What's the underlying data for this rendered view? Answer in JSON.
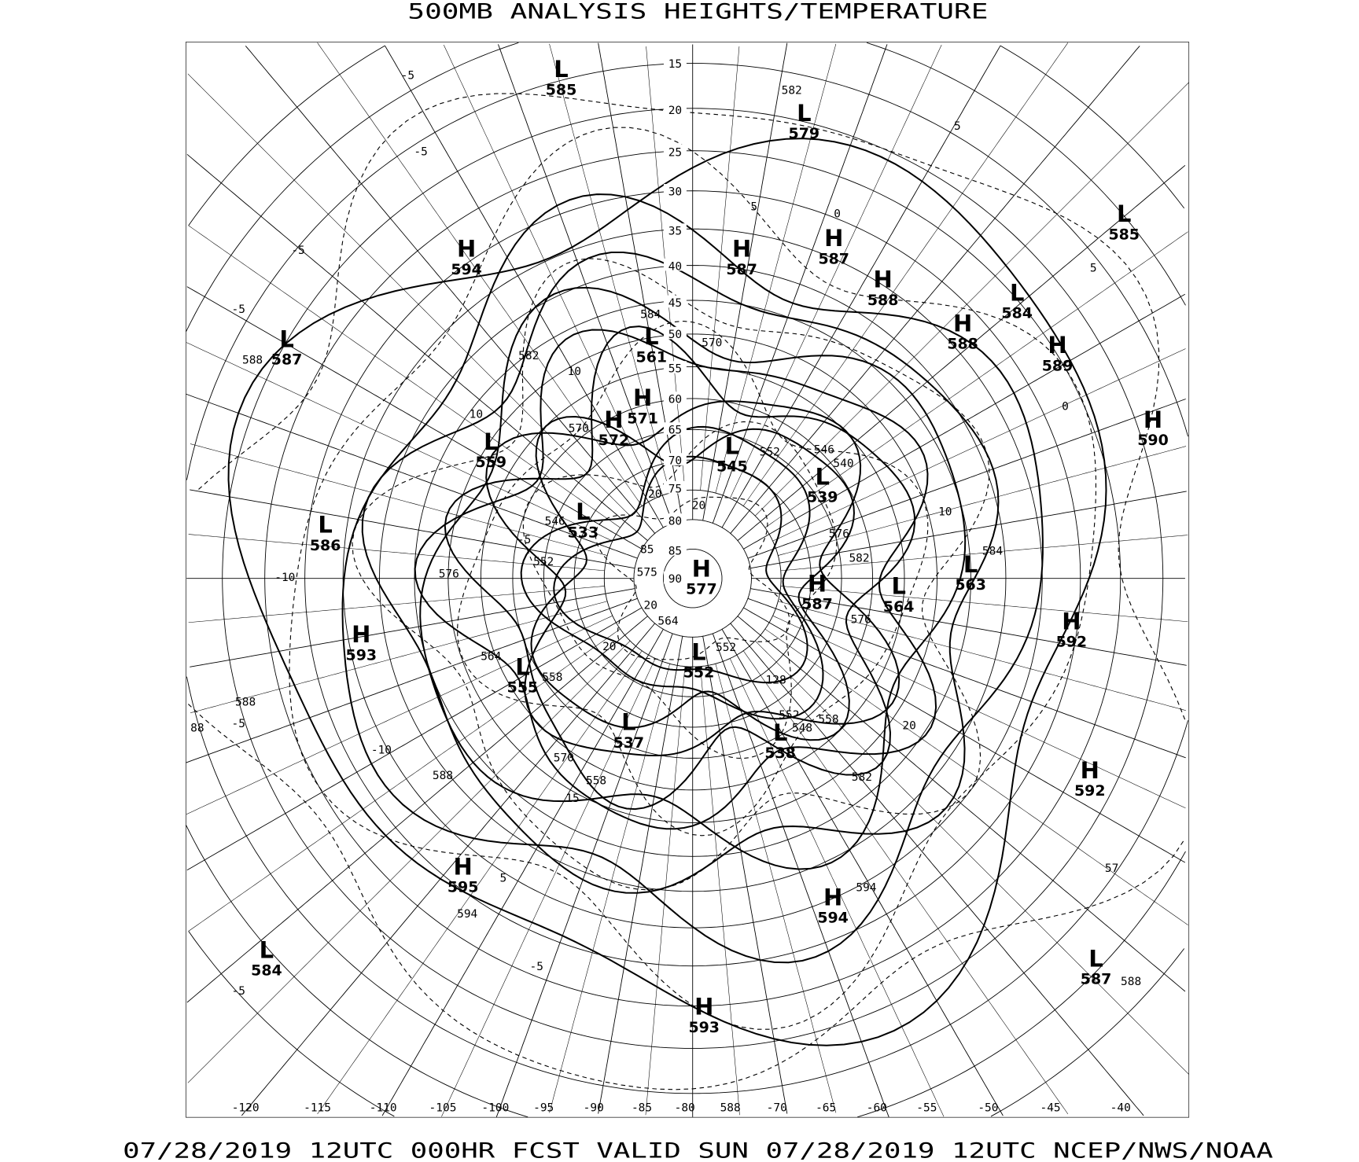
{
  "title": "500MB ANALYSIS  HEIGHTS/TEMPERATURE",
  "footer": "07/28/2019 12UTC 000HR FCST VALID SUN 07/28/2019 12UTC  NCEP/NWS/NOAA",
  "projection": "north polar stereographic",
  "latitude_labels": [
    "15",
    "20",
    "25",
    "30",
    "35",
    "40",
    "45",
    "50",
    "55",
    "60",
    "65",
    "70",
    "75",
    "80",
    "85",
    "90"
  ],
  "longitude_labels": [
    "-120",
    "-115",
    "-110",
    "-105",
    "-100",
    "-95",
    "-90",
    "-85",
    "-80",
    "588",
    "-70",
    "-65",
    "-60",
    "-55",
    "-50",
    "-45",
    "-40"
  ],
  "centers": [
    {
      "type": "L",
      "value": "585"
    },
    {
      "type": "L",
      "value": "579"
    },
    {
      "type": "H",
      "value": "594"
    },
    {
      "type": "H",
      "value": "587"
    },
    {
      "type": "H",
      "value": "587"
    },
    {
      "type": "H",
      "value": "588"
    },
    {
      "type": "L",
      "value": "585"
    },
    {
      "type": "L",
      "value": "584"
    },
    {
      "type": "H",
      "value": "588"
    },
    {
      "type": "H",
      "value": "589"
    },
    {
      "type": "L",
      "value": "587"
    },
    {
      "type": "L",
      "value": "561"
    },
    {
      "type": "H",
      "value": "571"
    },
    {
      "type": "H",
      "value": "572"
    },
    {
      "type": "L",
      "value": "559"
    },
    {
      "type": "L",
      "value": "545"
    },
    {
      "type": "L",
      "value": "539"
    },
    {
      "type": "H",
      "value": "590"
    },
    {
      "type": "L",
      "value": "533"
    },
    {
      "type": "L",
      "value": "586"
    },
    {
      "type": "H",
      "value": "577"
    },
    {
      "type": "H",
      "value": "587"
    },
    {
      "type": "L",
      "value": "564"
    },
    {
      "type": "L",
      "value": "563"
    },
    {
      "type": "H",
      "value": "592"
    },
    {
      "type": "H",
      "value": "593"
    },
    {
      "type": "L",
      "value": "555"
    },
    {
      "type": "L",
      "value": "552"
    },
    {
      "type": "L",
      "value": "537"
    },
    {
      "type": "L",
      "value": "538"
    },
    {
      "type": "H",
      "value": "592"
    },
    {
      "type": "H",
      "value": "595"
    },
    {
      "type": "H",
      "value": "594"
    },
    {
      "type": "L",
      "value": "584"
    },
    {
      "type": "L",
      "value": "587"
    },
    {
      "type": "H",
      "value": "593"
    }
  ],
  "contour_labels": [
    "582",
    "-5",
    "-5",
    "5",
    "0",
    "5",
    "-5",
    "-5",
    "588",
    "5",
    "0",
    "10",
    "10",
    "570",
    "582",
    "584",
    "570",
    "552",
    "546",
    "540",
    "576",
    "582",
    "576",
    "576",
    "552",
    "546",
    "564",
    "558",
    "-10",
    "10",
    "584",
    "20",
    "558",
    "552",
    "548",
    "582",
    "588",
    "570",
    "558",
    "15",
    "-10",
    "588",
    "-5",
    "88",
    "5",
    "594",
    "594",
    "-5",
    "-5",
    "588",
    "57",
    "20",
    "20",
    "20",
    "20",
    "85",
    "575",
    "564",
    "552",
    "128",
    "-5"
  ],
  "colors": {
    "background": "#ffffff",
    "lines": "#000000"
  }
}
